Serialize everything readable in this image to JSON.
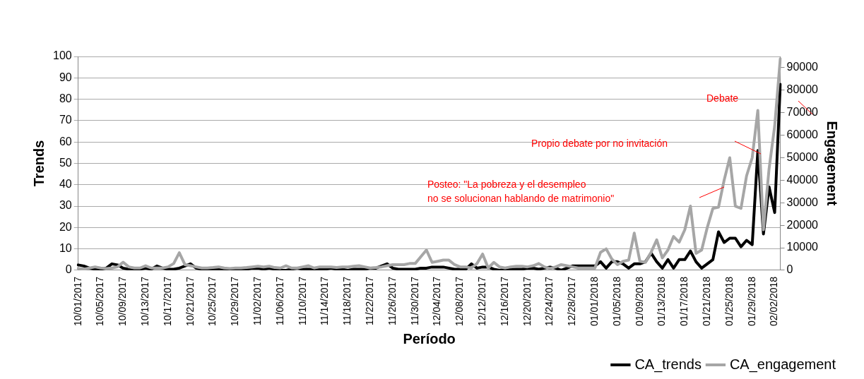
{
  "chart_data": {
    "type": "line",
    "xlabel": "Período",
    "ylabel": "Trends",
    "y2label": "Engagement",
    "categories": [
      "10/01/2017",
      null,
      null,
      null,
      "10/05/2017",
      null,
      null,
      null,
      "10/09/2017",
      null,
      null,
      null,
      "10/13/2017",
      null,
      null,
      null,
      "10/17/2017",
      null,
      null,
      null,
      "10/21/2017",
      null,
      null,
      null,
      "10/25/2017",
      null,
      null,
      null,
      "10/29/2017",
      null,
      null,
      null,
      "11/02/2017",
      null,
      null,
      null,
      "11/06/2017",
      null,
      null,
      null,
      "11/10/2017",
      null,
      null,
      null,
      "11/14/2017",
      null,
      null,
      null,
      "11/18/2017",
      null,
      null,
      null,
      "11/22/2017",
      null,
      null,
      null,
      "11/26/2017",
      null,
      null,
      null,
      "11/30/2017",
      null,
      null,
      null,
      "12/04/2017",
      null,
      null,
      null,
      "12/08/2017",
      null,
      null,
      null,
      "12/12/2017",
      null,
      null,
      null,
      "12/16/2017",
      null,
      null,
      null,
      "12/20/2017",
      null,
      null,
      null,
      "12/24/2017",
      null,
      null,
      null,
      "12/28/2017",
      null,
      null,
      null,
      "01/01/2018",
      null,
      null,
      null,
      "01/05/2018",
      null,
      null,
      null,
      "01/09/2018",
      null,
      null,
      null,
      "01/13/2018",
      null,
      null,
      null,
      "01/17/2018",
      null,
      null,
      null,
      "01/21/2018",
      null,
      null,
      null,
      "01/25/2018",
      null,
      null,
      null,
      "01/29/2018",
      null,
      null,
      null,
      "02/02/2018",
      null
    ],
    "series": [
      {
        "name": "CA_trends",
        "color": "#000000",
        "values": [
          2.5,
          2,
          1,
          0.5,
          0.5,
          1,
          3,
          2.5,
          1,
          0.5,
          0,
          0.5,
          1,
          0.5,
          2,
          1,
          0.5,
          0.5,
          1,
          2,
          3,
          1,
          0.5,
          0,
          0.5,
          0.5,
          0.5,
          0,
          0.5,
          0.5,
          0.5,
          1,
          1,
          0.5,
          1,
          0.5,
          0,
          0,
          0.5,
          1,
          0.5,
          0.5,
          0.5,
          0.5,
          0.5,
          1,
          0.5,
          0.5,
          0,
          0.5,
          0.5,
          0.5,
          1,
          1,
          2,
          3,
          1,
          0.5,
          0.5,
          0.5,
          0.5,
          1,
          1,
          1.5,
          1.5,
          1.5,
          1,
          0.5,
          0.5,
          0.5,
          3,
          1,
          1.5,
          1.5,
          0.5,
          0,
          0.5,
          0.5,
          0.5,
          0.5,
          1,
          1,
          0.5,
          1,
          1.5,
          1,
          0,
          1,
          2,
          2,
          2,
          2,
          2,
          4,
          1,
          4,
          4,
          3,
          1,
          3,
          3,
          4,
          8,
          4,
          1,
          5,
          1,
          5,
          5,
          9,
          4,
          1,
          3,
          5,
          18,
          13,
          15,
          15,
          11,
          14,
          12,
          56,
          17,
          39,
          27,
          87
        ]
      },
      {
        "name": "CA_engagement",
        "color": "#a6a6a6",
        "axis": "y2",
        "values": [
          800,
          500,
          1000,
          1500,
          1000,
          800,
          1000,
          1500,
          3600,
          1500,
          1000,
          1000,
          2000,
          1000,
          1000,
          1000,
          1500,
          3000,
          7800,
          2500,
          2000,
          1500,
          1000,
          1000,
          1200,
          1500,
          1000,
          800,
          1000,
          1000,
          1200,
          1500,
          1800,
          1500,
          1800,
          1200,
          1000,
          2000,
          1000,
          1000,
          1500,
          2000,
          1000,
          1500,
          1500,
          1500,
          1200,
          1500,
          1500,
          1800,
          2000,
          1500,
          1000,
          1200,
          1500,
          2000,
          2500,
          2500,
          2500,
          3000,
          3000,
          6000,
          9000,
          3500,
          4000,
          4500,
          4500,
          2500,
          1500,
          1500,
          1000,
          3000,
          7200,
          1000,
          3500,
          1500,
          1000,
          1500,
          1800,
          1800,
          1500,
          2000,
          3000,
          1500,
          800,
          1500,
          2500,
          2000,
          1500,
          1000,
          1000,
          1000,
          1000,
          8000,
          9500,
          5000,
          2500,
          4000,
          4500,
          16500,
          4000,
          3500,
          8000,
          13500,
          5500,
          9000,
          15000,
          12500,
          18000,
          28500,
          7500,
          9000,
          19000,
          27500,
          28000,
          40000,
          50000,
          28500,
          27500,
          42000,
          50000,
          71000,
          18000,
          45000,
          64000,
          94000
        ]
      }
    ],
    "ylim": [
      0,
      100
    ],
    "yticks": [
      0,
      10,
      20,
      30,
      40,
      50,
      60,
      70,
      80,
      90,
      100
    ],
    "y2lim": [
      0,
      95000
    ],
    "y2ticks": [
      0,
      10000,
      20000,
      30000,
      40000,
      50000,
      60000,
      70000,
      80000,
      90000
    ],
    "grid": "y",
    "legend": "bottom right",
    "marker": "none",
    "line_style": "solid",
    "annotations": [
      "Debate",
      "Propio debate por no invitación",
      "Posteo: \"La pobreza y el desempleo\nno se solucionan hablando de matrimonio\""
    ]
  }
}
